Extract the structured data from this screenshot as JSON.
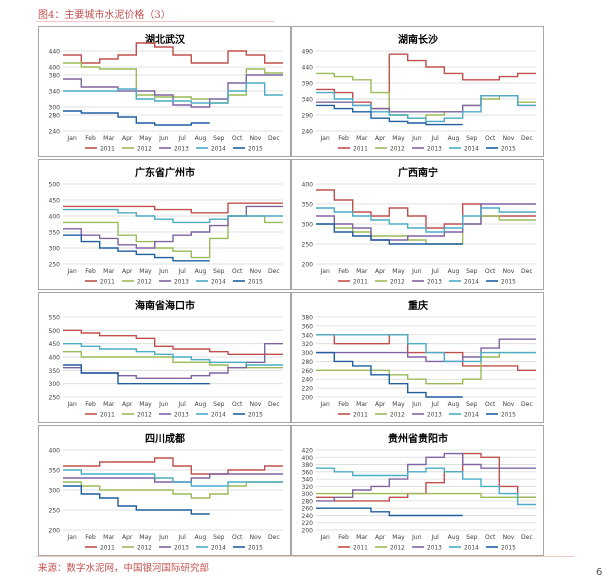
{
  "header": {
    "figure_title": "图4：主要城市水泥价格（3）"
  },
  "footer": {
    "source": "来源：数字水泥网，中国银河国际研究部",
    "page_number": "6"
  },
  "colors": {
    "2011": "#c0504d",
    "2012": "#9bbb59",
    "2013": "#8064a2",
    "2014": "#4bacc6",
    "2015": "#1f5f9f"
  },
  "chart_data": [
    {
      "type": "line",
      "title": "湖北武汉",
      "categories": [
        "Jan",
        "Feb",
        "Mar",
        "Apr",
        "May",
        "Jun",
        "Jul",
        "Aug",
        "Sep",
        "Oct",
        "Nov",
        "Dec"
      ],
      "ylim": [
        240,
        440
      ],
      "yticks": [
        240,
        280,
        300,
        340,
        380,
        400,
        440
      ],
      "ytick_labels": [
        "240",
        "280",
        "300",
        "340",
        "380",
        "400",
        "440"
      ],
      "series": [
        {
          "name": "2011",
          "values": [
            430,
            410,
            420,
            430,
            460,
            450,
            430,
            410,
            410,
            440,
            430,
            410
          ]
        },
        {
          "name": "2012",
          "values": [
            410,
            400,
            395,
            395,
            330,
            325,
            325,
            320,
            310,
            330,
            395,
            385
          ]
        },
        {
          "name": "2013",
          "values": [
            370,
            350,
            350,
            340,
            340,
            330,
            305,
            300,
            320,
            360,
            380,
            380
          ]
        },
        {
          "name": "2014",
          "values": [
            340,
            340,
            340,
            345,
            320,
            315,
            315,
            310,
            310,
            340,
            360,
            330
          ]
        },
        {
          "name": "2015",
          "values": [
            290,
            285,
            285,
            275,
            260,
            255,
            255,
            260,
            null,
            null,
            null,
            null
          ]
        }
      ],
      "legend": "bottom"
    },
    {
      "type": "line",
      "title": "湖南长沙",
      "categories": [
        "Jan",
        "Feb",
        "Mar",
        "Apr",
        "May",
        "Jun",
        "Jul",
        "Aug",
        "Sep",
        "Oct",
        "Nov",
        "Dec"
      ],
      "ylim": [
        240,
        490
      ],
      "yticks": [
        240,
        290,
        340,
        390,
        440,
        490
      ],
      "ytick_labels": [
        "240",
        "290",
        "340",
        "390",
        "440",
        "490"
      ],
      "series": [
        {
          "name": "2011",
          "values": [
            370,
            360,
            330,
            310,
            480,
            460,
            440,
            420,
            400,
            400,
            410,
            420
          ]
        },
        {
          "name": "2012",
          "values": [
            420,
            410,
            400,
            360,
            290,
            280,
            290,
            300,
            320,
            340,
            350,
            330
          ]
        },
        {
          "name": "2013",
          "values": [
            330,
            330,
            320,
            310,
            300,
            300,
            300,
            300,
            320,
            350,
            350,
            320
          ]
        },
        {
          "name": "2014",
          "values": [
            360,
            340,
            320,
            300,
            290,
            280,
            270,
            280,
            300,
            350,
            350,
            320
          ]
        },
        {
          "name": "2015",
          "values": [
            320,
            310,
            300,
            280,
            270,
            265,
            260,
            260,
            null,
            null,
            null,
            null
          ]
        }
      ],
      "legend": "bottom"
    },
    {
      "type": "line",
      "title": "广东省广州市",
      "categories": [
        "Jan",
        "Feb",
        "Mar",
        "Apr",
        "May",
        "Jun",
        "Jul",
        "Aug",
        "Sep",
        "Oct",
        "Nov",
        "Dec"
      ],
      "ylim": [
        250,
        500
      ],
      "yticks": [
        250,
        300,
        350,
        400,
        450,
        500
      ],
      "ytick_labels": [
        "250",
        "300",
        "350",
        "400",
        "450",
        "500"
      ],
      "series": [
        {
          "name": "2011",
          "values": [
            430,
            430,
            430,
            430,
            430,
            420,
            420,
            410,
            410,
            440,
            440,
            440
          ]
        },
        {
          "name": "2012",
          "values": [
            380,
            380,
            380,
            340,
            320,
            300,
            290,
            270,
            330,
            400,
            400,
            380
          ]
        },
        {
          "name": "2013",
          "values": [
            360,
            340,
            330,
            310,
            300,
            320,
            340,
            350,
            370,
            400,
            430,
            430
          ]
        },
        {
          "name": "2014",
          "values": [
            420,
            420,
            420,
            410,
            400,
            390,
            380,
            380,
            390,
            400,
            400,
            400
          ]
        },
        {
          "name": "2015",
          "values": [
            340,
            320,
            300,
            290,
            280,
            270,
            260,
            260,
            null,
            null,
            null,
            null
          ]
        }
      ],
      "legend": "bottom"
    },
    {
      "type": "line",
      "title": "广西南宁",
      "categories": [
        "Jan",
        "Feb",
        "Mar",
        "Apr",
        "May",
        "Jun",
        "Jul",
        "Aug",
        "Sep",
        "Oct",
        "Nov",
        "Dec"
      ],
      "ylim": [
        200,
        400
      ],
      "yticks": [
        200,
        250,
        300,
        350,
        400
      ],
      "ytick_labels": [
        "200",
        "250",
        "300",
        "350",
        "400"
      ],
      "series": [
        {
          "name": "2011",
          "values": [
            385,
            360,
            330,
            320,
            340,
            320,
            290,
            300,
            350,
            320,
            320,
            320
          ]
        },
        {
          "name": "2012",
          "values": [
            300,
            290,
            280,
            270,
            270,
            260,
            250,
            250,
            300,
            320,
            310,
            310
          ]
        },
        {
          "name": "2013",
          "values": [
            320,
            300,
            290,
            260,
            260,
            270,
            270,
            280,
            300,
            350,
            350,
            350
          ]
        },
        {
          "name": "2014",
          "values": [
            340,
            330,
            320,
            310,
            300,
            290,
            280,
            290,
            320,
            340,
            330,
            330
          ]
        },
        {
          "name": "2015",
          "values": [
            300,
            280,
            270,
            260,
            250,
            250,
            250,
            250,
            null,
            null,
            null,
            null
          ]
        }
      ],
      "legend": "bottom"
    },
    {
      "type": "line",
      "title": "海南省海口市",
      "categories": [
        "Jan",
        "Feb",
        "Mar",
        "Apr",
        "May",
        "Jun",
        "Jul",
        "Aug",
        "Sep",
        "Oct",
        "Nov",
        "Dec"
      ],
      "ylim": [
        250,
        550
      ],
      "yticks": [
        250,
        300,
        350,
        400,
        450,
        500,
        550
      ],
      "ytick_labels": [
        "250",
        "300",
        "350",
        "400",
        "450",
        "500",
        "550"
      ],
      "series": [
        {
          "name": "2011",
          "values": [
            500,
            490,
            480,
            480,
            470,
            440,
            430,
            430,
            420,
            410,
            410,
            410
          ]
        },
        {
          "name": "2012",
          "values": [
            420,
            400,
            400,
            400,
            400,
            400,
            380,
            380,
            370,
            360,
            360,
            360
          ]
        },
        {
          "name": "2013",
          "values": [
            360,
            340,
            340,
            330,
            320,
            320,
            320,
            330,
            340,
            360,
            380,
            450
          ]
        },
        {
          "name": "2014",
          "values": [
            450,
            440,
            430,
            430,
            420,
            410,
            400,
            390,
            380,
            380,
            370,
            370
          ]
        },
        {
          "name": "2015",
          "values": [
            370,
            340,
            340,
            300,
            300,
            300,
            300,
            300,
            null,
            null,
            null,
            null
          ]
        }
      ],
      "legend": "bottom"
    },
    {
      "type": "line",
      "title": "重庆",
      "categories": [
        "Jan",
        "Feb",
        "Mar",
        "Apr",
        "May",
        "Jun",
        "Jul",
        "Aug",
        "Sep",
        "Oct",
        "Nov",
        "Dec"
      ],
      "ylim": [
        200,
        380
      ],
      "yticks": [
        200,
        220,
        240,
        260,
        280,
        300,
        320,
        340,
        360,
        380
      ],
      "ytick_labels": [
        "200",
        "220",
        "240",
        "260",
        "280",
        "300",
        "320",
        "340",
        "360",
        "380"
      ],
      "series": [
        {
          "name": "2011",
          "values": [
            340,
            320,
            320,
            320,
            340,
            300,
            300,
            300,
            270,
            270,
            270,
            260
          ]
        },
        {
          "name": "2012",
          "values": [
            260,
            260,
            260,
            260,
            250,
            240,
            230,
            230,
            240,
            290,
            300,
            300
          ]
        },
        {
          "name": "2013",
          "values": [
            300,
            300,
            300,
            300,
            300,
            290,
            280,
            280,
            290,
            310,
            330,
            330
          ]
        },
        {
          "name": "2014",
          "values": [
            340,
            340,
            340,
            340,
            340,
            320,
            300,
            280,
            280,
            300,
            300,
            300
          ]
        },
        {
          "name": "2015",
          "values": [
            300,
            280,
            270,
            250,
            230,
            210,
            200,
            200,
            null,
            null,
            null,
            null
          ]
        }
      ],
      "legend": "bottom"
    },
    {
      "type": "line",
      "title": "四川成都",
      "categories": [
        "Jan",
        "Feb",
        "Mar",
        "Apr",
        "May",
        "Jun",
        "Jul",
        "Aug",
        "Sep",
        "Oct",
        "Nov",
        "Dec"
      ],
      "ylim": [
        200,
        400
      ],
      "yticks": [
        200,
        250,
        300,
        350,
        400
      ],
      "ytick_labels": [
        "200",
        "250",
        "300",
        "350",
        "400"
      ],
      "series": [
        {
          "name": "2011",
          "values": [
            360,
            360,
            370,
            370,
            370,
            380,
            360,
            340,
            340,
            350,
            350,
            360
          ]
        },
        {
          "name": "2012",
          "values": [
            320,
            310,
            300,
            300,
            300,
            300,
            290,
            280,
            290,
            310,
            320,
            320
          ]
        },
        {
          "name": "2013",
          "values": [
            330,
            330,
            330,
            330,
            330,
            320,
            320,
            330,
            340,
            340,
            340,
            340
          ]
        },
        {
          "name": "2014",
          "values": [
            350,
            340,
            340,
            340,
            340,
            330,
            320,
            310,
            310,
            320,
            320,
            320
          ]
        },
        {
          "name": "2015",
          "values": [
            310,
            290,
            280,
            260,
            250,
            250,
            250,
            240,
            null,
            null,
            null,
            null
          ]
        }
      ],
      "legend": "bottom"
    },
    {
      "type": "line",
      "title": "贵州省贵阳市",
      "categories": [
        "Jan",
        "Feb",
        "Mar",
        "Apr",
        "May",
        "Jun",
        "Jul",
        "Aug",
        "Sep",
        "Oct",
        "Nov",
        "Dec"
      ],
      "ylim": [
        200,
        420
      ],
      "yticks": [
        200,
        220,
        240,
        260,
        280,
        300,
        320,
        340,
        360,
        380,
        400,
        420
      ],
      "ytick_labels": [
        "200",
        "220",
        "240",
        "260",
        "280",
        "300",
        "320",
        "340",
        "360",
        "380",
        "400",
        "420"
      ],
      "series": [
        {
          "name": "2011",
          "values": [
            290,
            280,
            280,
            280,
            290,
            300,
            330,
            360,
            410,
            400,
            320,
            290
          ]
        },
        {
          "name": "2012",
          "values": [
            300,
            300,
            300,
            300,
            300,
            300,
            300,
            300,
            300,
            290,
            290,
            290
          ]
        },
        {
          "name": "2013",
          "values": [
            280,
            290,
            310,
            320,
            340,
            380,
            400,
            410,
            380,
            370,
            370,
            370
          ]
        },
        {
          "name": "2014",
          "values": [
            370,
            360,
            350,
            350,
            350,
            360,
            370,
            360,
            340,
            320,
            300,
            270
          ]
        },
        {
          "name": "2015",
          "values": [
            260,
            260,
            260,
            250,
            240,
            240,
            240,
            240,
            null,
            null,
            null,
            null
          ]
        }
      ],
      "legend": "bottom"
    }
  ]
}
